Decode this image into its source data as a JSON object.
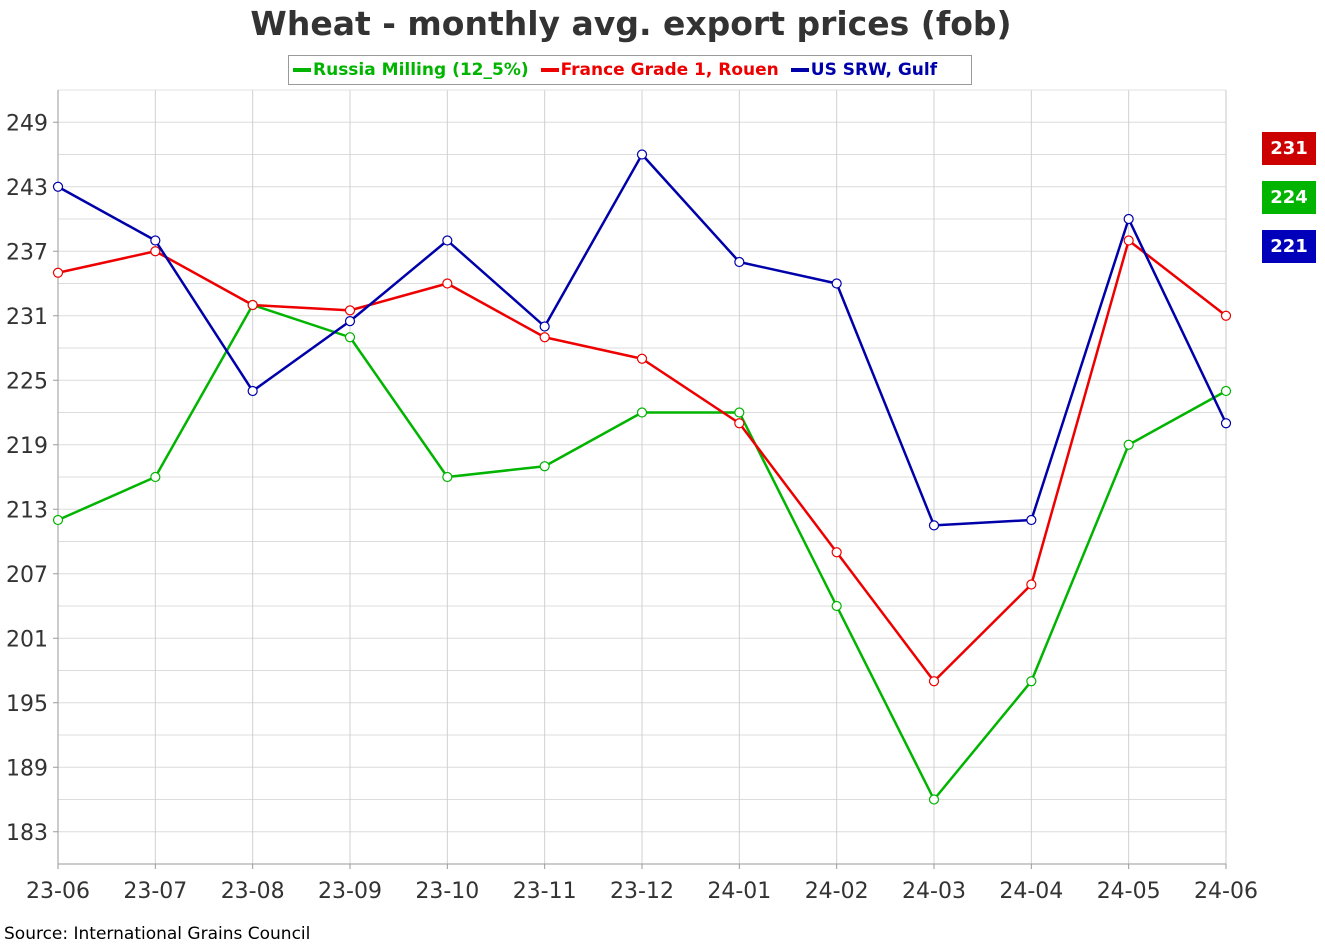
{
  "chart_data": {
    "type": "line",
    "title": "Wheat - monthly avg. export prices (fob)",
    "xlabel": "",
    "ylabel": "",
    "categories": [
      "23-06",
      "23-07",
      "23-08",
      "23-09",
      "23-10",
      "23-11",
      "23-12",
      "24-01",
      "24-02",
      "24-03",
      "24-04",
      "24-05",
      "24-06"
    ],
    "ylim": [
      180,
      252
    ],
    "yticks": [
      183,
      189,
      195,
      201,
      207,
      213,
      219,
      225,
      231,
      237,
      243,
      249
    ],
    "grid": true,
    "legend_position": "top",
    "series": [
      {
        "name": "Russia Milling (12_5%)",
        "color": "#00b400",
        "values": [
          212,
          216,
          232,
          229,
          216,
          217,
          222,
          222,
          204,
          186,
          197,
          219,
          224
        ]
      },
      {
        "name": "France Grade 1, Rouen",
        "color": "#ee0000",
        "values": [
          235,
          237,
          232,
          231.5,
          234,
          229,
          227,
          221,
          209,
          197,
          206,
          238,
          231
        ]
      },
      {
        "name": "US SRW, Gulf",
        "color": "#0000aa",
        "values": [
          243,
          238,
          224,
          230.5,
          238,
          230,
          246,
          236,
          234,
          211.5,
          212,
          240,
          221
        ]
      }
    ],
    "last_value_badges": [
      {
        "label": "231",
        "color": "#cc0000"
      },
      {
        "label": "224",
        "color": "#00b400"
      },
      {
        "label": "221",
        "color": "#0000bb"
      }
    ]
  },
  "source": "Source: International Grains Council"
}
